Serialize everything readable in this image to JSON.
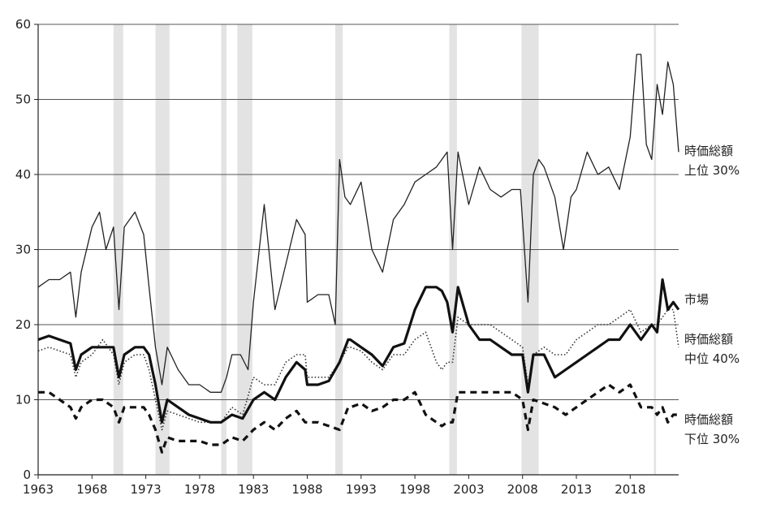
{
  "chart_data": {
    "type": "line",
    "xlim": [
      1963,
      2022.5
    ],
    "ylim": [
      0,
      60
    ],
    "grid": true,
    "y_ticks": [
      0,
      10,
      20,
      30,
      40,
      50,
      60
    ],
    "x_ticks": [
      1963,
      1968,
      1973,
      1978,
      1983,
      1988,
      1993,
      1998,
      2003,
      2008,
      2013,
      2018
    ],
    "y_tick_labels": [
      "0",
      "10",
      "20",
      "30",
      "40",
      "50",
      "60"
    ],
    "x_tick_labels": [
      "1963",
      "1968",
      "1973",
      "1978",
      "1983",
      "1988",
      "1993",
      "1998",
      "2003",
      "2008",
      "2013",
      "2018"
    ],
    "shaded_periods": [
      [
        1970.0,
        1970.9
      ],
      [
        1973.9,
        1975.2
      ],
      [
        1980.0,
        1980.5
      ],
      [
        1981.5,
        1982.9
      ],
      [
        1990.6,
        1991.3
      ],
      [
        2001.2,
        2001.9
      ],
      [
        2007.9,
        2009.5
      ],
      [
        2020.2,
        2020.4
      ]
    ],
    "series_labels": [
      {
        "lines": [
          "時価総額",
          "上位 30%"
        ]
      },
      {
        "lines": [
          "市場"
        ]
      },
      {
        "lines": [
          "時価総額",
          "中位 40%"
        ]
      },
      {
        "lines": [
          "時価総額",
          "下位 30%"
        ]
      }
    ],
    "series": [
      {
        "style": "thin",
        "x": [
          1963,
          1964,
          1965,
          1966,
          1966.5,
          1967,
          1968,
          1968.7,
          1969.3,
          1970,
          1970.5,
          1971,
          1972,
          1972.8,
          1973.3,
          1973.9,
          1974.5,
          1975,
          1976,
          1977,
          1978,
          1979,
          1980,
          1980.5,
          1981,
          1981.8,
          1982.5,
          1983,
          1984,
          1985,
          1986,
          1987,
          1987.8,
          1988,
          1989,
          1990,
          1990.6,
          1991,
          1991.5,
          1992,
          1993,
          1994,
          1995,
          1996,
          1997,
          1998,
          1999,
          2000,
          2000.5,
          2001,
          2001.5,
          2002,
          2003,
          2004,
          2005,
          2006,
          2007,
          2007.8,
          2008.5,
          2009,
          2009.5,
          2010,
          2011,
          2011.8,
          2012.5,
          2013,
          2014,
          2015,
          2016,
          2017,
          2018,
          2018.6,
          2019,
          2019.5,
          2020,
          2020.5,
          2021,
          2021.5,
          2022,
          2022.5
        ],
        "y": [
          25,
          26,
          26,
          27,
          21,
          27,
          33,
          35,
          30,
          33,
          22,
          33,
          35,
          32,
          25,
          17,
          12,
          17,
          14,
          12,
          12,
          11,
          11,
          13,
          16,
          16,
          14,
          23,
          36,
          22,
          28,
          34,
          32,
          23,
          24,
          24,
          20,
          42,
          37,
          36,
          39,
          30,
          27,
          34,
          36,
          39,
          40,
          41,
          42,
          43,
          30,
          43,
          36,
          41,
          38,
          37,
          38,
          38,
          23,
          40,
          42,
          41,
          37,
          30,
          37,
          38,
          43,
          40,
          41,
          38,
          45,
          56,
          56,
          44,
          42,
          52,
          48,
          55,
          52,
          43
        ]
      },
      {
        "style": "thick",
        "x": [
          1963,
          1964,
          1965,
          1966,
          1966.5,
          1967,
          1968,
          1969,
          1970,
          1970.5,
          1971,
          1972,
          1972.8,
          1973.3,
          1973.9,
          1974.5,
          1975,
          1976,
          1977,
          1978,
          1979,
          1980,
          1981,
          1982,
          1983,
          1984,
          1985,
          1986,
          1987,
          1987.8,
          1988,
          1989,
          1990,
          1991,
          1991.8,
          1992,
          1993,
          1994,
          1995,
          1996,
          1997,
          1998,
          1999,
          2000,
          2000.5,
          2001,
          2001.5,
          2002,
          2003,
          2004,
          2005,
          2006,
          2007,
          2008,
          2008.5,
          2009,
          2010,
          2011,
          2012,
          2013,
          2014,
          2015,
          2016,
          2017,
          2018,
          2019,
          2020,
          2020.5,
          2021,
          2021.5,
          2022,
          2022.5
        ],
        "y": [
          18,
          18.5,
          18,
          17.5,
          14,
          16,
          17,
          17,
          17,
          13,
          16,
          17,
          17,
          16,
          12,
          7,
          10,
          9,
          8,
          7.5,
          7,
          7,
          8,
          7.5,
          10,
          11,
          10,
          13,
          15,
          14,
          12,
          12,
          12.5,
          15,
          18,
          18,
          17,
          16,
          14.5,
          17,
          17.5,
          22,
          25,
          25,
          24.5,
          23,
          19,
          25,
          20,
          18,
          18,
          17,
          16,
          16,
          11,
          16,
          16,
          13,
          14,
          15,
          16,
          17,
          18,
          18,
          20,
          18,
          20,
          19,
          26,
          22,
          23,
          22
        ]
      },
      {
        "style": "dotted",
        "x": [
          1963,
          1964,
          1965,
          1966,
          1966.5,
          1967,
          1968,
          1969,
          1970,
          1970.5,
          1971,
          1972,
          1972.8,
          1973.3,
          1973.9,
          1974.5,
          1975,
          1976,
          1977,
          1978,
          1979,
          1980,
          1981,
          1982,
          1983,
          1984,
          1985,
          1986,
          1987,
          1987.8,
          1988,
          1989,
          1990,
          1991,
          1991.8,
          1992,
          1993,
          1994,
          1995,
          1996,
          1997,
          1998,
          1999,
          2000,
          2000.5,
          2001,
          2001.5,
          2002,
          2003,
          2004,
          2005,
          2006,
          2007,
          2008,
          2008.5,
          2009,
          2010,
          2011,
          2012,
          2013,
          2014,
          2015,
          2016,
          2017,
          2018,
          2019,
          2020,
          2020.5,
          2021,
          2021.5,
          2022,
          2022.5
        ],
        "y": [
          16.5,
          17,
          16.5,
          16,
          13,
          15,
          16,
          18,
          16,
          12,
          15,
          16,
          16,
          14,
          10,
          6,
          8.5,
          8,
          7.5,
          7,
          7,
          7,
          9,
          8,
          13,
          12,
          12,
          15,
          16,
          16,
          13,
          13,
          13,
          15,
          17,
          17,
          16.5,
          15,
          14,
          16,
          16,
          18,
          19,
          15,
          14,
          15,
          15,
          21,
          20,
          20,
          20,
          19,
          18,
          17,
          12,
          16,
          17,
          16,
          16,
          18,
          19,
          20,
          20,
          21,
          22,
          19,
          20,
          20,
          21,
          22,
          22,
          17
        ]
      },
      {
        "style": "dashed",
        "x": [
          1963,
          1964,
          1965,
          1966,
          1966.5,
          1967,
          1968,
          1969,
          1970,
          1970.5,
          1971,
          1972,
          1972.8,
          1973.3,
          1973.9,
          1974.5,
          1975,
          1976,
          1977,
          1978,
          1979,
          1980,
          1981,
          1982,
          1983,
          1984,
          1985,
          1986,
          1987,
          1987.8,
          1988,
          1989,
          1990,
          1991,
          1991.8,
          1992,
          1993,
          1994,
          1995,
          1996,
          1997,
          1998,
          1999,
          2000,
          2000.5,
          2001,
          2001.5,
          2002,
          2003,
          2004,
          2005,
          2006,
          2007,
          2008,
          2008.5,
          2009,
          2010,
          2011,
          2012,
          2013,
          2014,
          2015,
          2016,
          2017,
          2018,
          2019,
          2020,
          2020.5,
          2021,
          2021.5,
          2022,
          2022.5
        ],
        "y": [
          11,
          11,
          10,
          9,
          7.5,
          9,
          10,
          10,
          9,
          7,
          9,
          9,
          9,
          8,
          6,
          3,
          5,
          4.5,
          4.5,
          4.5,
          4,
          4,
          5,
          4.5,
          6,
          7,
          6,
          7.5,
          8.5,
          7,
          7,
          7,
          6.5,
          6,
          9,
          9,
          9.5,
          8.5,
          9,
          10,
          10,
          11,
          8,
          7,
          6.5,
          7,
          7,
          11,
          11,
          11,
          11,
          11,
          11,
          10,
          6,
          10,
          9.5,
          9,
          8,
          9,
          10,
          11,
          12,
          11,
          12,
          9,
          9,
          8,
          9,
          7,
          8,
          8
        ]
      }
    ]
  }
}
